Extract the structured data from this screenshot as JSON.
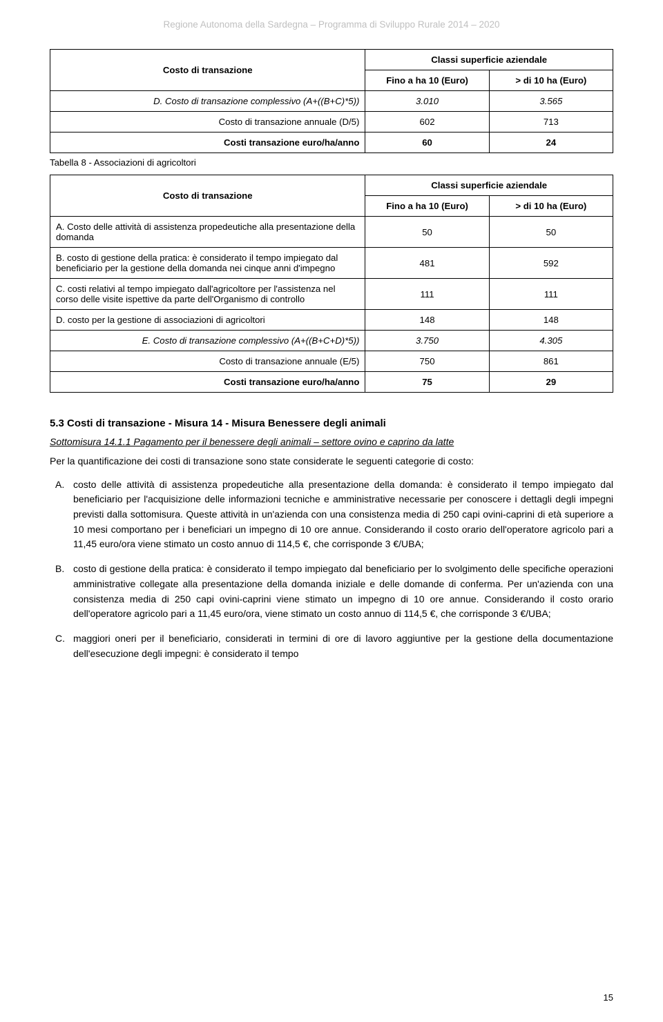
{
  "header": "Regione Autonoma della Sardegna – Programma di Sviluppo Rurale 2014 – 2020",
  "table_a": {
    "label_header": "Costo di transazione",
    "super_header": "Classi superficie aziendale",
    "col1_header": "Fino a ha 10 (Euro)",
    "col2_header": "> di 10 ha (Euro)",
    "rows": [
      {
        "label": "D.   Costo di transazione complessivo (A+((B+C)*5))",
        "v1": "3.010",
        "v2": "3.565",
        "right": true,
        "italic": true
      },
      {
        "label": "Costo di transazione annuale (D/5)",
        "v1": "602",
        "v2": "713",
        "right": true
      },
      {
        "label": "Costi transazione euro/ha/anno",
        "v1": "60",
        "v2": "24",
        "right": true,
        "bold": true
      }
    ]
  },
  "caption": "Tabella 8 - Associazioni di agricoltori",
  "table_b": {
    "label_header": "Costo di transazione",
    "super_header": "Classi superficie aziendale",
    "col1_header": "Fino a ha 10 (Euro)",
    "col2_header": "> di 10 ha (Euro)",
    "rows": [
      {
        "label": "A.   Costo delle attività di assistenza propedeutiche alla presentazione della domanda",
        "v1": "50",
        "v2": "50"
      },
      {
        "label": "B.   costo di gestione della pratica: è considerato il tempo impiegato dal beneficiario per la gestione della domanda nei cinque anni d'impegno",
        "v1": "481",
        "v2": "592"
      },
      {
        "label": "C.   costi relativi al tempo impiegato dall'agricoltore per l'assistenza nel corso delle visite ispettive da parte dell'Organismo di controllo",
        "v1": "111",
        "v2": "111"
      },
      {
        "label": "D.   costo per la gestione di associazioni di agricoltori",
        "v1": "148",
        "v2": "148"
      },
      {
        "label": "E.   Costo di transazione complessivo (A+((B+C+D)*5))",
        "v1": "3.750",
        "v2": "4.305",
        "right": true,
        "italic": true
      },
      {
        "label": "Costo di transazione annuale (E/5)",
        "v1": "750",
        "v2": "861",
        "right": true
      },
      {
        "label": "Costi transazione euro/ha/anno",
        "v1": "75",
        "v2": "29",
        "right": true,
        "bold": true
      }
    ]
  },
  "section": {
    "heading": "5.3  Costi di transazione - Misura 14 - Misura Benessere degli animali",
    "subtitle": "Sottomisura 14.1.1 Pagamento per il benessere degli animali – settore ovino e caprino da latte",
    "intro": "Per la quantificazione dei costi di transazione sono state considerate le seguenti categorie di costo:",
    "items": [
      {
        "marker": "A.",
        "text": "costo delle attività di assistenza propedeutiche alla presentazione della domanda: è considerato il tempo impiegato dal beneficiario per l'acquisizione delle informazioni tecniche e amministrative necessarie per conoscere i dettagli degli impegni previsti dalla sottomisura. Queste attività in un'azienda con una consistenza media di 250 capi ovini-caprini di età superiore a 10 mesi comportano per i beneficiari un impegno di 10 ore annue. Considerando il costo orario dell'operatore agricolo pari a 11,45 euro/ora viene stimato un costo annuo di 114,5 €, che corrisponde 3 €/UBA;"
      },
      {
        "marker": "B.",
        "text": "costo di gestione della pratica: è considerato il tempo impiegato dal beneficiario per lo svolgimento delle specifiche operazioni amministrative collegate alla presentazione della domanda iniziale e delle domande di conferma. Per un'azienda con una consistenza media di 250 capi ovini-caprini viene stimato un impegno di 10 ore annue. Considerando il costo orario dell'operatore agricolo pari a 11,45 euro/ora, viene stimato un costo annuo di 114,5 €, che corrisponde 3 €/UBA;"
      },
      {
        "marker": "C.",
        "text": "maggiori oneri per il beneficiario, considerati in termini di ore di lavoro aggiuntive per la gestione della documentazione dell'esecuzione degli impegni: è considerato il tempo"
      }
    ]
  },
  "page_number": "15"
}
